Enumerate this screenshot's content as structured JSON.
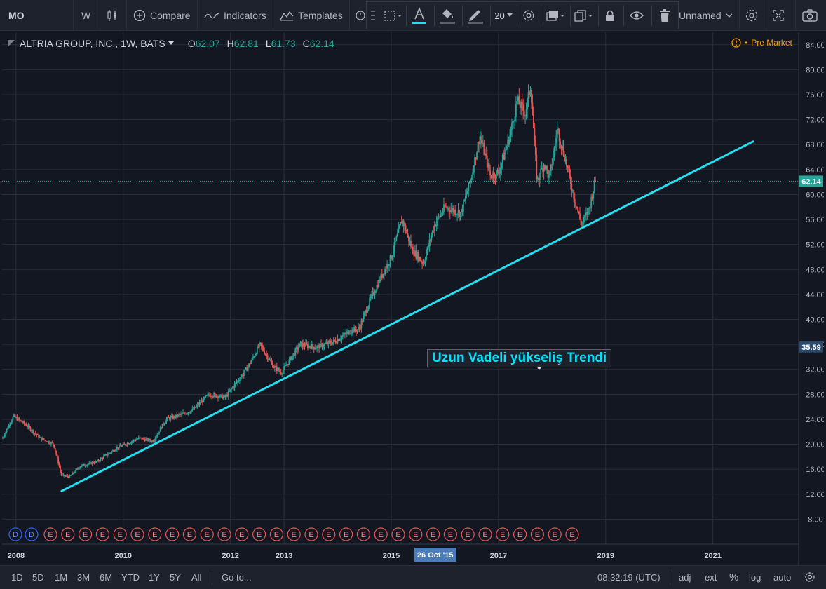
{
  "toolbar": {
    "symbol": "MO",
    "interval": "W",
    "compare": "Compare",
    "indicators": "Indicators",
    "templates": "Templates",
    "layout_name": "Unnamed"
  },
  "drawing_toolbar": {
    "line_width": "20"
  },
  "legend": {
    "title": "ALTRIA GROUP, INC., 1W, BATS",
    "o_label": "O",
    "o_value": "62.07",
    "h_label": "H",
    "h_value": "62.81",
    "l_label": "L",
    "l_value": "61.73",
    "c_label": "C",
    "c_value": "62.14"
  },
  "market_status": "Pre Market",
  "annotation": "Uzun Vadeli yükseliş Trendi",
  "price_labels": {
    "last": "62.14",
    "marker": "35.59"
  },
  "crosshair_date": "26 Oct '15",
  "bottom": {
    "ranges": [
      "1D",
      "5D",
      "1M",
      "3M",
      "6M",
      "YTD",
      "1Y",
      "5Y",
      "All"
    ],
    "goto": "Go to...",
    "clock": "08:32:19 (UTC)",
    "adj": "adj",
    "ext": "ext",
    "percent": "%",
    "log": "log",
    "auto": "auto"
  },
  "colors": {
    "background": "#131722",
    "up": "#26a69a",
    "down": "#ef5350",
    "trendline": "#22e0f0",
    "accent": "#2962ff"
  },
  "chart_data": {
    "type": "candlestick",
    "title": "ALTRIA GROUP, INC., 1W, BATS",
    "ylim": [
      4,
      86
    ],
    "yticks": [
      8,
      12,
      16,
      20,
      24,
      28,
      32,
      36,
      40,
      44,
      48,
      52,
      56,
      60,
      64,
      68,
      72,
      76,
      80,
      84
    ],
    "x_ticks": [
      {
        "label": "2008",
        "year": 2008.0
      },
      {
        "label": "2010",
        "year": 2010.0
      },
      {
        "label": "2012",
        "year": 2012.0
      },
      {
        "label": "2013",
        "year": 2013.0
      },
      {
        "label": "2015",
        "year": 2015.0
      },
      {
        "label": "2017",
        "year": 2017.0
      },
      {
        "label": "2019",
        "year": 2019.0
      },
      {
        "label": "2021",
        "year": 2021.0
      }
    ],
    "price_path": [
      [
        2007.75,
        21.0
      ],
      [
        2007.95,
        24.5
      ],
      [
        2008.2,
        23.0
      ],
      [
        2008.45,
        21.0
      ],
      [
        2008.7,
        20.0
      ],
      [
        2008.85,
        15.0
      ],
      [
        2009.0,
        14.8
      ],
      [
        2009.2,
        16.5
      ],
      [
        2009.5,
        17.2
      ],
      [
        2009.9,
        19.5
      ],
      [
        2010.3,
        21.0
      ],
      [
        2010.55,
        20.5
      ],
      [
        2010.8,
        24.0
      ],
      [
        2011.0,
        24.5
      ],
      [
        2011.3,
        25.5
      ],
      [
        2011.6,
        28.0
      ],
      [
        2011.9,
        27.5
      ],
      [
        2012.3,
        32.0
      ],
      [
        2012.55,
        36.0
      ],
      [
        2012.8,
        32.5
      ],
      [
        2012.95,
        31.5
      ],
      [
        2013.3,
        36.0
      ],
      [
        2013.6,
        35.5
      ],
      [
        2013.95,
        36.5
      ],
      [
        2014.2,
        38.0
      ],
      [
        2014.4,
        38.5
      ],
      [
        2014.6,
        43.0
      ],
      [
        2014.85,
        47.5
      ],
      [
        2015.0,
        50.0
      ],
      [
        2015.2,
        56.0
      ],
      [
        2015.4,
        51.0
      ],
      [
        2015.6,
        49.0
      ],
      [
        2015.8,
        55.0
      ],
      [
        2016.0,
        58.0
      ],
      [
        2016.3,
        57.0
      ],
      [
        2016.5,
        63.0
      ],
      [
        2016.65,
        69.5
      ],
      [
        2016.85,
        63.0
      ],
      [
        2017.0,
        63.5
      ],
      [
        2017.2,
        69.0
      ],
      [
        2017.35,
        75.0
      ],
      [
        2017.5,
        73.0
      ],
      [
        2017.6,
        77.5
      ],
      [
        2017.72,
        62.0
      ],
      [
        2017.85,
        65.0
      ],
      [
        2017.95,
        62.5
      ],
      [
        2018.1,
        70.5
      ],
      [
        2018.25,
        65.5
      ],
      [
        2018.4,
        60.0
      ],
      [
        2018.55,
        55.0
      ],
      [
        2018.7,
        58.0
      ],
      [
        2018.8,
        62.14
      ]
    ],
    "trendline": {
      "start": [
        2008.85,
        12.5
      ],
      "end": [
        2021.75,
        68.5
      ]
    },
    "last_price": 62.14,
    "events": {
      "dividends": 2,
      "earnings": 31
    },
    "event_labels": {
      "dividend": "D",
      "earnings": "E"
    },
    "x_domain": [
      2007.74,
      2022.6
    ]
  }
}
